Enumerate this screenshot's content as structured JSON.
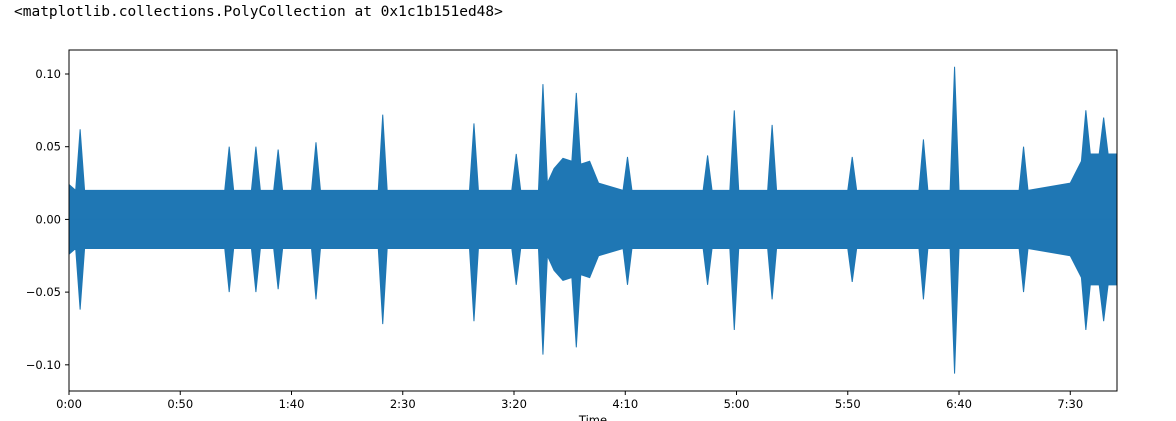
{
  "output_text": "<matplotlib.collections.PolyCollection at 0x1c1b151ed48>",
  "chart_data": {
    "type": "waveform",
    "xlabel": "Time",
    "x": [
      0,
      3,
      5,
      7,
      70,
      72,
      74,
      82,
      84,
      86,
      92,
      94,
      96,
      109,
      111,
      113,
      139,
      141,
      143,
      180,
      182,
      184,
      199,
      201,
      203,
      211,
      213,
      215,
      218,
      222,
      226,
      228,
      230,
      234,
      238,
      249,
      251,
      253,
      285,
      287,
      289,
      297,
      299,
      301,
      314,
      316,
      318,
      350,
      352,
      354,
      382,
      384,
      386,
      396,
      398,
      400,
      427,
      429,
      431,
      450,
      455,
      457,
      459,
      463,
      465,
      467,
      471
    ],
    "series": [
      {
        "color": "#1f77b4",
        "values": [
          0.024,
          0.02,
          0.062,
          0.02,
          0.02,
          0.05,
          0.02,
          0.02,
          0.05,
          0.02,
          0.02,
          0.048,
          0.02,
          0.02,
          0.053,
          0.02,
          0.02,
          0.072,
          0.02,
          0.02,
          0.066,
          0.02,
          0.02,
          0.045,
          0.02,
          0.02,
          0.093,
          0.025,
          0.035,
          0.042,
          0.04,
          0.087,
          0.038,
          0.04,
          0.025,
          0.02,
          0.043,
          0.02,
          0.02,
          0.044,
          0.02,
          0.02,
          0.075,
          0.02,
          0.02,
          0.065,
          0.02,
          0.02,
          0.043,
          0.02,
          0.02,
          0.055,
          0.02,
          0.02,
          0.105,
          0.02,
          0.02,
          0.05,
          0.02,
          0.025,
          0.04,
          0.075,
          0.045,
          0.045,
          0.07,
          0.045,
          0.045
        ]
      },
      {
        "color": "#1f77b4",
        "values": [
          -0.024,
          -0.02,
          -0.062,
          -0.02,
          -0.02,
          -0.05,
          -0.02,
          -0.02,
          -0.05,
          -0.02,
          -0.02,
          -0.048,
          -0.02,
          -0.02,
          -0.055,
          -0.02,
          -0.02,
          -0.072,
          -0.02,
          -0.02,
          -0.07,
          -0.02,
          -0.02,
          -0.045,
          -0.02,
          -0.02,
          -0.093,
          -0.025,
          -0.035,
          -0.042,
          -0.04,
          -0.088,
          -0.038,
          -0.04,
          -0.025,
          -0.02,
          -0.045,
          -0.02,
          -0.02,
          -0.045,
          -0.02,
          -0.02,
          -0.076,
          -0.02,
          -0.02,
          -0.055,
          -0.02,
          -0.02,
          -0.043,
          -0.02,
          -0.02,
          -0.055,
          -0.02,
          -0.02,
          -0.106,
          -0.02,
          -0.02,
          -0.05,
          -0.02,
          -0.025,
          -0.04,
          -0.076,
          -0.045,
          -0.045,
          -0.07,
          -0.045,
          -0.045
        ]
      }
    ],
    "xlim": [
      0,
      471
    ],
    "xticks": [
      {
        "value": 0,
        "label": "0:00"
      },
      {
        "value": 50,
        "label": "0:50"
      },
      {
        "value": 100,
        "label": "1:40"
      },
      {
        "value": 150,
        "label": "2:30"
      },
      {
        "value": 200,
        "label": "3:20"
      },
      {
        "value": 250,
        "label": "4:10"
      },
      {
        "value": 300,
        "label": "5:00"
      },
      {
        "value": 350,
        "label": "5:50"
      },
      {
        "value": 400,
        "label": "6:40"
      },
      {
        "value": 450,
        "label": "7:30"
      }
    ],
    "ylim": [
      -0.118,
      0.1165
    ],
    "yticks": [
      {
        "value": -0.1,
        "label": "−0.10"
      },
      {
        "value": -0.05,
        "label": "−0.05"
      },
      {
        "value": 0,
        "label": "0.00"
      },
      {
        "value": 0.05,
        "label": "0.05"
      },
      {
        "value": 0.1,
        "label": "0.10"
      }
    ]
  }
}
